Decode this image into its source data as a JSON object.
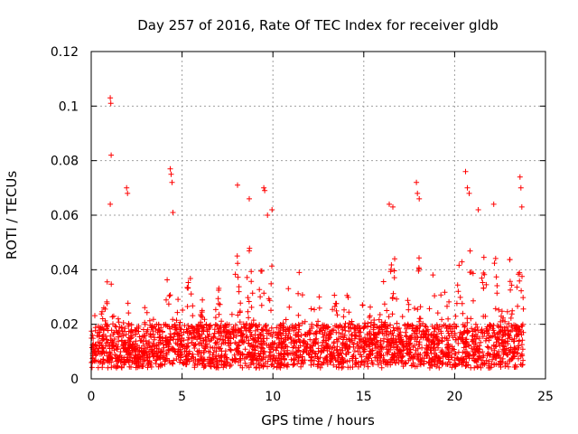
{
  "chart_data": {
    "type": "scatter",
    "title": "Day 257 of 2016, Rate Of TEC Index for receiver gldb",
    "xlabel": "GPS time / hours",
    "ylabel": "ROTI / TECUs",
    "xlim": [
      0,
      25
    ],
    "ylim": [
      0,
      0.12
    ],
    "xticks": [
      0,
      5,
      10,
      15,
      20,
      25
    ],
    "xtick_labels": [
      "0",
      "5",
      "10",
      "15",
      "20",
      "25"
    ],
    "yticks": [
      0,
      0.02,
      0.04,
      0.06,
      0.08,
      0.1,
      0.12
    ],
    "ytick_labels": [
      "0",
      "0.02",
      "0.04",
      "0.06",
      "0.08",
      "0.1",
      "0.12"
    ],
    "grid": true,
    "marker": "+",
    "color": "#ff0000",
    "series": [
      {
        "name": "ROTI",
        "time_range_hours": [
          0,
          23.8
        ],
        "typical_range": [
          0.003,
          0.03
        ],
        "dense_band": [
          0.005,
          0.02
        ],
        "outliers": [
          {
            "x": 1.05,
            "y": 0.103
          },
          {
            "x": 1.08,
            "y": 0.101
          },
          {
            "x": 1.1,
            "y": 0.082
          },
          {
            "x": 1.05,
            "y": 0.064
          },
          {
            "x": 1.95,
            "y": 0.07
          },
          {
            "x": 2.0,
            "y": 0.068
          },
          {
            "x": 4.35,
            "y": 0.077
          },
          {
            "x": 4.4,
            "y": 0.075
          },
          {
            "x": 4.45,
            "y": 0.072
          },
          {
            "x": 4.5,
            "y": 0.061
          },
          {
            "x": 8.05,
            "y": 0.071
          },
          {
            "x": 8.7,
            "y": 0.066
          },
          {
            "x": 9.5,
            "y": 0.07
          },
          {
            "x": 9.55,
            "y": 0.069
          },
          {
            "x": 9.7,
            "y": 0.06
          },
          {
            "x": 9.95,
            "y": 0.062
          },
          {
            "x": 16.4,
            "y": 0.064
          },
          {
            "x": 16.6,
            "y": 0.063
          },
          {
            "x": 17.9,
            "y": 0.072
          },
          {
            "x": 17.95,
            "y": 0.068
          },
          {
            "x": 18.05,
            "y": 0.066
          },
          {
            "x": 20.6,
            "y": 0.076
          },
          {
            "x": 20.7,
            "y": 0.07
          },
          {
            "x": 20.8,
            "y": 0.068
          },
          {
            "x": 21.3,
            "y": 0.062
          },
          {
            "x": 22.15,
            "y": 0.064
          },
          {
            "x": 23.6,
            "y": 0.074
          },
          {
            "x": 23.65,
            "y": 0.07
          },
          {
            "x": 23.7,
            "y": 0.063
          }
        ]
      }
    ]
  }
}
